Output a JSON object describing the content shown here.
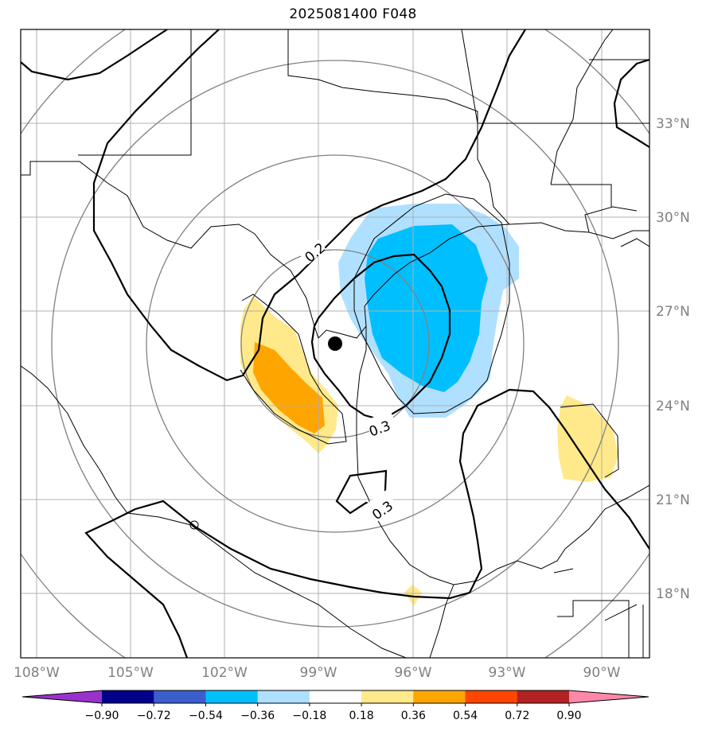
{
  "title": "2025081400 F048",
  "lon_ticks": [
    "108°W",
    "105°W",
    "102°W",
    "99°W",
    "96°W",
    "93°W",
    "90°W"
  ],
  "lat_ticks": [
    "33°N",
    "30°N",
    "27°N",
    "24°N",
    "21°N",
    "18°N"
  ],
  "contour_labels": [
    "0.2",
    "0.3",
    "0.3"
  ],
  "colorbar": {
    "labels": [
      "−0.90",
      "−0.72",
      "−0.54",
      "−0.36",
      "−0.18",
      "0.18",
      "0.36",
      "0.54",
      "0.72",
      "0.90"
    ],
    "colors": [
      "#9932cc",
      "#00008b",
      "#3a5fcd",
      "#00bfff",
      "#b0e0ff",
      "#ffffff",
      "#ffe98a",
      "#ffa500",
      "#ff4500",
      "#b22222",
      "#ff88aa"
    ]
  },
  "fill_colors": {
    "light_blue": "#b0e0ff",
    "blue": "#00bfff",
    "light_yellow": "#ffe98a",
    "orange": "#ffa500"
  }
}
